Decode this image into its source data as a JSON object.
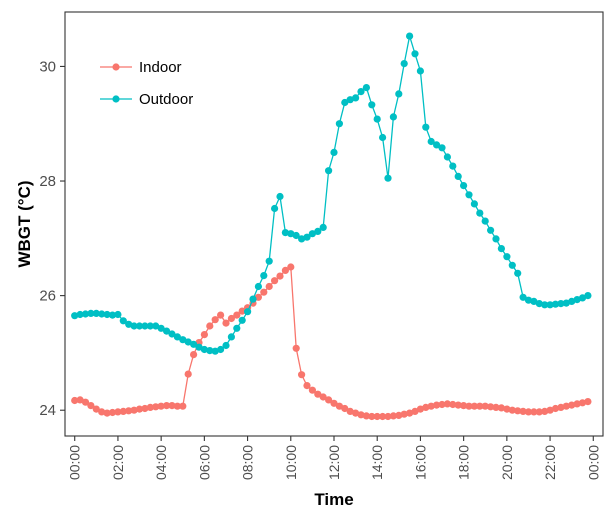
{
  "chart_data": {
    "type": "line",
    "xlabel": "Time",
    "ylabel": "WBGT (°C)",
    "ylim": [
      23.55,
      30.95
    ],
    "xlim": [
      -0.45,
      24.45
    ],
    "x_unit": "hours",
    "x_ticks": [
      {
        "value": 0,
        "label": "00:00"
      },
      {
        "value": 2,
        "label": "02:00"
      },
      {
        "value": 4,
        "label": "04:00"
      },
      {
        "value": 6,
        "label": "06:00"
      },
      {
        "value": 8,
        "label": "08:00"
      },
      {
        "value": 10,
        "label": "10:00"
      },
      {
        "value": 12,
        "label": "12:00"
      },
      {
        "value": 14,
        "label": "14:00"
      },
      {
        "value": 16,
        "label": "16:00"
      },
      {
        "value": 18,
        "label": "18:00"
      },
      {
        "value": 20,
        "label": "20:00"
      },
      {
        "value": 22,
        "label": "22:00"
      },
      {
        "value": 24,
        "label": "00:00"
      }
    ],
    "y_ticks": [
      {
        "value": 24,
        "label": "24"
      },
      {
        "value": 26,
        "label": "26"
      },
      {
        "value": 28,
        "label": "28"
      },
      {
        "value": 30,
        "label": "30"
      }
    ],
    "grid": false,
    "legend_position": "top-left",
    "series": [
      {
        "name": "Indoor",
        "color": "#F8766D",
        "points": [
          [
            0.0,
            24.17
          ],
          [
            0.25,
            24.18
          ],
          [
            0.5,
            24.14
          ],
          [
            0.75,
            24.08
          ],
          [
            1.0,
            24.02
          ],
          [
            1.25,
            23.97
          ],
          [
            1.5,
            23.95
          ],
          [
            1.75,
            23.96
          ],
          [
            2.0,
            23.97
          ],
          [
            2.25,
            23.98
          ],
          [
            2.5,
            23.99
          ],
          [
            2.75,
            24.0
          ],
          [
            3.0,
            24.02
          ],
          [
            3.25,
            24.03
          ],
          [
            3.5,
            24.05
          ],
          [
            3.75,
            24.06
          ],
          [
            4.0,
            24.07
          ],
          [
            4.25,
            24.08
          ],
          [
            4.5,
            24.08
          ],
          [
            4.75,
            24.07
          ],
          [
            5.0,
            24.07
          ],
          [
            5.25,
            24.63
          ],
          [
            5.5,
            24.97
          ],
          [
            5.75,
            25.18
          ],
          [
            6.0,
            25.32
          ],
          [
            6.25,
            25.47
          ],
          [
            6.5,
            25.58
          ],
          [
            6.75,
            25.66
          ],
          [
            7.0,
            25.52
          ],
          [
            7.25,
            25.6
          ],
          [
            7.5,
            25.66
          ],
          [
            7.75,
            25.73
          ],
          [
            8.0,
            25.79
          ],
          [
            8.25,
            25.87
          ],
          [
            8.5,
            25.97
          ],
          [
            8.75,
            26.06
          ],
          [
            9.0,
            26.16
          ],
          [
            9.25,
            26.26
          ],
          [
            9.5,
            26.34
          ],
          [
            9.75,
            26.44
          ],
          [
            10.0,
            26.5
          ],
          [
            10.25,
            25.08
          ],
          [
            10.5,
            24.62
          ],
          [
            10.75,
            24.43
          ],
          [
            11.0,
            24.35
          ],
          [
            11.25,
            24.28
          ],
          [
            11.5,
            24.23
          ],
          [
            11.75,
            24.18
          ],
          [
            12.0,
            24.12
          ],
          [
            12.25,
            24.07
          ],
          [
            12.5,
            24.03
          ],
          [
            12.75,
            23.98
          ],
          [
            13.0,
            23.95
          ],
          [
            13.25,
            23.92
          ],
          [
            13.5,
            23.9
          ],
          [
            13.75,
            23.89
          ],
          [
            14.0,
            23.89
          ],
          [
            14.25,
            23.89
          ],
          [
            14.5,
            23.89
          ],
          [
            14.75,
            23.9
          ],
          [
            15.0,
            23.91
          ],
          [
            15.25,
            23.93
          ],
          [
            15.5,
            23.95
          ],
          [
            15.75,
            23.98
          ],
          [
            16.0,
            24.02
          ],
          [
            16.25,
            24.05
          ],
          [
            16.5,
            24.07
          ],
          [
            16.75,
            24.09
          ],
          [
            17.0,
            24.1
          ],
          [
            17.25,
            24.11
          ],
          [
            17.5,
            24.1
          ],
          [
            17.75,
            24.09
          ],
          [
            18.0,
            24.08
          ],
          [
            18.25,
            24.07
          ],
          [
            18.5,
            24.07
          ],
          [
            18.75,
            24.07
          ],
          [
            19.0,
            24.07
          ],
          [
            19.25,
            24.06
          ],
          [
            19.5,
            24.05
          ],
          [
            19.75,
            24.04
          ],
          [
            20.0,
            24.02
          ],
          [
            20.25,
            24.0
          ],
          [
            20.5,
            23.99
          ],
          [
            20.75,
            23.98
          ],
          [
            21.0,
            23.97
          ],
          [
            21.25,
            23.97
          ],
          [
            21.5,
            23.97
          ],
          [
            21.75,
            23.98
          ],
          [
            22.0,
            24.0
          ],
          [
            22.25,
            24.03
          ],
          [
            22.5,
            24.05
          ],
          [
            22.75,
            24.07
          ],
          [
            23.0,
            24.09
          ],
          [
            23.25,
            24.11
          ],
          [
            23.5,
            24.13
          ],
          [
            23.75,
            24.15
          ]
        ]
      },
      {
        "name": "Outdoor",
        "color": "#00BFC4",
        "points": [
          [
            0.0,
            25.65
          ],
          [
            0.25,
            25.67
          ],
          [
            0.5,
            25.68
          ],
          [
            0.75,
            25.69
          ],
          [
            1.0,
            25.69
          ],
          [
            1.25,
            25.68
          ],
          [
            1.5,
            25.67
          ],
          [
            1.75,
            25.66
          ],
          [
            2.0,
            25.67
          ],
          [
            2.25,
            25.56
          ],
          [
            2.5,
            25.5
          ],
          [
            2.75,
            25.47
          ],
          [
            3.0,
            25.47
          ],
          [
            3.25,
            25.47
          ],
          [
            3.5,
            25.47
          ],
          [
            3.75,
            25.47
          ],
          [
            4.0,
            25.43
          ],
          [
            4.25,
            25.38
          ],
          [
            4.5,
            25.33
          ],
          [
            4.75,
            25.28
          ],
          [
            5.0,
            25.23
          ],
          [
            5.25,
            25.19
          ],
          [
            5.5,
            25.15
          ],
          [
            5.75,
            25.1
          ],
          [
            6.0,
            25.06
          ],
          [
            6.25,
            25.04
          ],
          [
            6.5,
            25.03
          ],
          [
            6.75,
            25.06
          ],
          [
            7.0,
            25.13
          ],
          [
            7.25,
            25.28
          ],
          [
            7.5,
            25.43
          ],
          [
            7.75,
            25.57
          ],
          [
            8.0,
            25.72
          ],
          [
            8.25,
            25.94
          ],
          [
            8.5,
            26.16
          ],
          [
            8.75,
            26.35
          ],
          [
            9.0,
            26.6
          ],
          [
            9.25,
            27.52
          ],
          [
            9.5,
            27.73
          ],
          [
            9.75,
            27.1
          ],
          [
            10.0,
            27.08
          ],
          [
            10.25,
            27.05
          ],
          [
            10.5,
            26.99
          ],
          [
            10.75,
            27.02
          ],
          [
            11.0,
            27.08
          ],
          [
            11.25,
            27.12
          ],
          [
            11.5,
            27.19
          ],
          [
            11.75,
            28.18
          ],
          [
            12.0,
            28.5
          ],
          [
            12.25,
            29.0
          ],
          [
            12.5,
            29.37
          ],
          [
            12.75,
            29.42
          ],
          [
            13.0,
            29.45
          ],
          [
            13.25,
            29.56
          ],
          [
            13.5,
            29.63
          ],
          [
            13.75,
            29.33
          ],
          [
            14.0,
            29.08
          ],
          [
            14.25,
            28.76
          ],
          [
            14.5,
            28.05
          ],
          [
            14.75,
            29.12
          ],
          [
            15.0,
            29.52
          ],
          [
            15.25,
            30.05
          ],
          [
            15.5,
            30.53
          ],
          [
            15.75,
            30.22
          ],
          [
            16.0,
            29.92
          ],
          [
            16.25,
            28.94
          ],
          [
            16.5,
            28.69
          ],
          [
            16.75,
            28.63
          ],
          [
            17.0,
            28.58
          ],
          [
            17.25,
            28.42
          ],
          [
            17.5,
            28.26
          ],
          [
            17.75,
            28.08
          ],
          [
            18.0,
            27.92
          ],
          [
            18.25,
            27.76
          ],
          [
            18.5,
            27.6
          ],
          [
            18.75,
            27.44
          ],
          [
            19.0,
            27.3
          ],
          [
            19.25,
            27.14
          ],
          [
            19.5,
            26.99
          ],
          [
            19.75,
            26.82
          ],
          [
            20.0,
            26.68
          ],
          [
            20.25,
            26.53
          ],
          [
            20.5,
            26.39
          ],
          [
            20.75,
            25.97
          ],
          [
            21.0,
            25.92
          ],
          [
            21.25,
            25.9
          ],
          [
            21.5,
            25.86
          ],
          [
            21.75,
            25.84
          ],
          [
            22.0,
            25.84
          ],
          [
            22.25,
            25.85
          ],
          [
            22.5,
            25.86
          ],
          [
            22.75,
            25.87
          ],
          [
            23.0,
            25.9
          ],
          [
            23.25,
            25.93
          ],
          [
            23.5,
            25.96
          ],
          [
            23.75,
            26.0
          ]
        ]
      }
    ]
  }
}
